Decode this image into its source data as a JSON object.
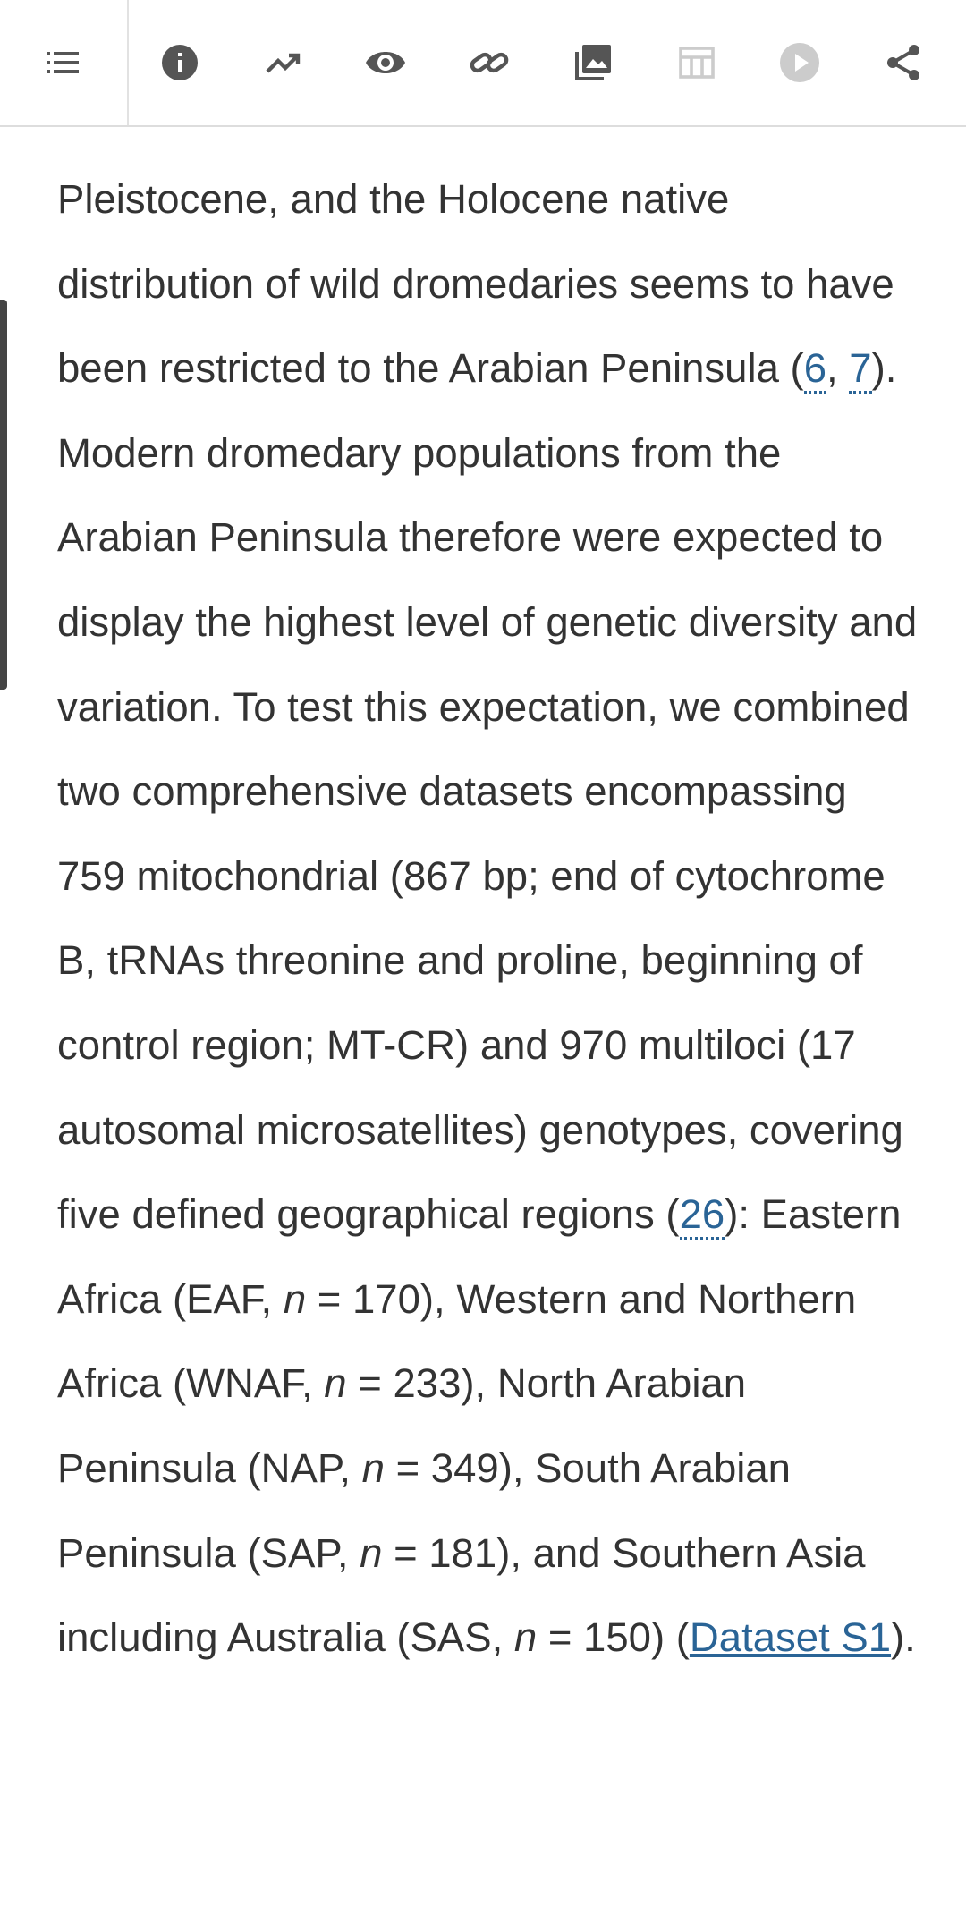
{
  "paragraph": [
    {
      "text": "Pleistocene, and the Holocene native distribution of wild dromedaries seems to have been restricted to the Arabian Peninsula ("
    },
    {
      "text": "6",
      "kind": "ref"
    },
    {
      "text": ", "
    },
    {
      "text": "7",
      "kind": "ref"
    },
    {
      "text": "). Modern dromedary populations from the Arabian Peninsula therefore were expected to display the highest level of genetic diversity and variation. To test this expectation, we combined two comprehensive datasets encompassing 759 mitochondrial (867 bp; end of cytochrome B, tRNAs threonine and proline, beginning of control region; MT-CR) and 970 multiloci (17 autosomal microsatellites) genotypes, covering five defined geographical regions ("
    },
    {
      "text": "26",
      "kind": "ref"
    },
    {
      "text": "): Eastern Africa (EAF, "
    },
    {
      "text": "n",
      "kind": "italic"
    },
    {
      "text": " = 170), Western and Northern Africa (WNAF, "
    },
    {
      "text": "n",
      "kind": "italic"
    },
    {
      "text": " = 233), North Arabian Peninsula (NAP, "
    },
    {
      "text": "n",
      "kind": "italic"
    },
    {
      "text": " = 349), South Arabian Peninsula (SAP, "
    },
    {
      "text": "n",
      "kind": "italic"
    },
    {
      "text": " = 181), and Southern Asia including Australia (SAS, "
    },
    {
      "text": "n",
      "kind": "italic"
    },
    {
      "text": " = 150) ("
    },
    {
      "text": "Dataset S1",
      "kind": "link"
    },
    {
      "text": ")."
    }
  ]
}
